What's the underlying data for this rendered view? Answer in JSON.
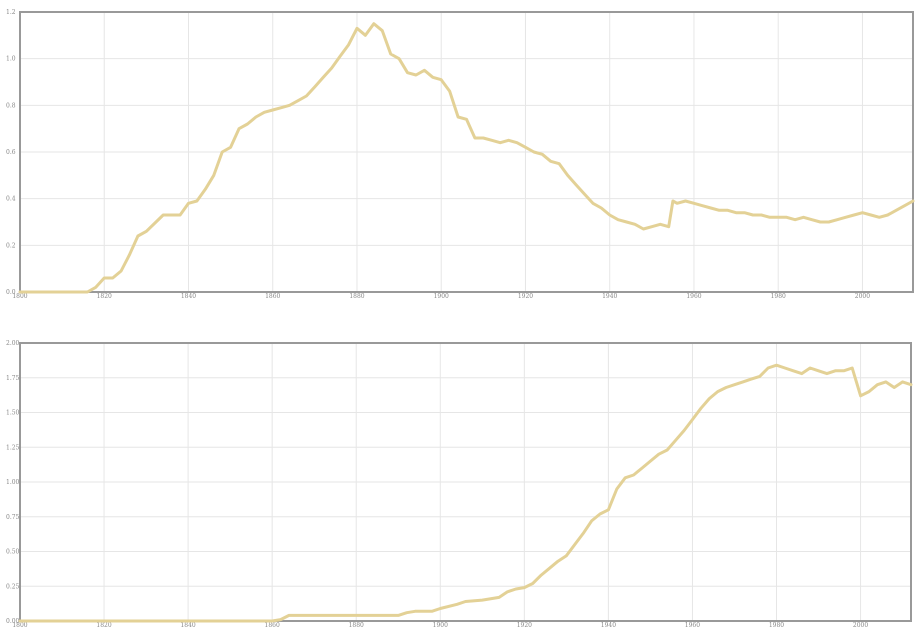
{
  "colors": {
    "line": "#e3d196",
    "grid": "#e6e6e6",
    "frame": "#999999"
  },
  "chart_data": [
    {
      "type": "line",
      "title": "",
      "xlabel": "",
      "ylabel": "",
      "xlim": [
        1800,
        2012
      ],
      "ylim": [
        0,
        1.2
      ],
      "grid": true,
      "xticks": [
        1800,
        1820,
        1840,
        1860,
        1880,
        1900,
        1920,
        1940,
        1960,
        1980,
        2000
      ],
      "xtick_labels": [
        "1800",
        "1820",
        "1840",
        "1860",
        "1880",
        "1900",
        "1920",
        "1940",
        "1960",
        "1980",
        "2000"
      ],
      "yticks": [
        0,
        0.2,
        0.4,
        0.6,
        0.8,
        1.0,
        1.2
      ],
      "ytick_labels": [
        "0.0",
        "0.2",
        "0.4",
        "0.6",
        "0.8",
        "1.0",
        "1.2"
      ],
      "series": [
        {
          "x": [
            1800,
            1816,
            1818,
            1820,
            1822,
            1824,
            1826,
            1828,
            1830,
            1834,
            1836,
            1838,
            1840,
            1842,
            1844,
            1846,
            1848,
            1850,
            1852,
            1854,
            1856,
            1858,
            1860,
            1862,
            1864,
            1866,
            1868,
            1870,
            1872,
            1874,
            1876,
            1878,
            1880,
            1882,
            1884,
            1886,
            1888,
            1890,
            1892,
            1894,
            1896,
            1898,
            1900,
            1902,
            1904,
            1906,
            1908,
            1910,
            1912,
            1914,
            1916,
            1918,
            1920,
            1922,
            1924,
            1926,
            1928,
            1930,
            1932,
            1934,
            1936,
            1938,
            1940,
            1942,
            1944,
            1946,
            1948,
            1950,
            1952,
            1954,
            1955,
            1956,
            1958,
            1960,
            1962,
            1964,
            1966,
            1968,
            1970,
            1972,
            1974,
            1976,
            1978,
            1980,
            1982,
            1984,
            1986,
            1988,
            1990,
            1992,
            1994,
            1996,
            1998,
            2000,
            2002,
            2004,
            2006,
            2008,
            2010,
            2012
          ],
          "y": [
            0,
            0,
            0.02,
            0.06,
            0.06,
            0.09,
            0.16,
            0.24,
            0.26,
            0.33,
            0.33,
            0.33,
            0.38,
            0.39,
            0.44,
            0.5,
            0.6,
            0.62,
            0.7,
            0.72,
            0.75,
            0.77,
            0.78,
            0.79,
            0.8,
            0.82,
            0.84,
            0.88,
            0.92,
            0.96,
            1.01,
            1.06,
            1.13,
            1.1,
            1.15,
            1.12,
            1.02,
            1.0,
            0.94,
            0.93,
            0.95,
            0.92,
            0.91,
            0.86,
            0.75,
            0.74,
            0.66,
            0.66,
            0.65,
            0.64,
            0.65,
            0.64,
            0.62,
            0.6,
            0.59,
            0.56,
            0.55,
            0.5,
            0.46,
            0.42,
            0.38,
            0.36,
            0.33,
            0.31,
            0.3,
            0.29,
            0.27,
            0.28,
            0.29,
            0.28,
            0.39,
            0.38,
            0.39,
            0.38,
            0.37,
            0.36,
            0.35,
            0.35,
            0.34,
            0.34,
            0.33,
            0.33,
            0.32,
            0.32,
            0.32,
            0.31,
            0.32,
            0.31,
            0.3,
            0.3,
            0.31,
            0.32,
            0.33,
            0.34,
            0.33,
            0.32,
            0.33,
            0.35,
            0.37,
            0.39
          ]
        }
      ]
    },
    {
      "type": "line",
      "title": "",
      "xlabel": "",
      "ylabel": "",
      "xlim": [
        1800,
        2012
      ],
      "ylim": [
        0,
        2.0
      ],
      "grid": true,
      "xticks": [
        1800,
        1820,
        1840,
        1860,
        1880,
        1900,
        1920,
        1940,
        1960,
        1980,
        2000
      ],
      "xtick_labels": [
        "1800",
        "1820",
        "1840",
        "1860",
        "1880",
        "1900",
        "1920",
        "1940",
        "1960",
        "1980",
        "2000"
      ],
      "yticks": [
        0,
        0.25,
        0.5,
        0.75,
        1.0,
        1.25,
        1.5,
        1.75,
        2.0
      ],
      "ytick_labels": [
        "0.00",
        "0.25",
        "0.50",
        "0.75",
        "1.00",
        "1.25",
        "1.50",
        "1.75",
        "2.00"
      ],
      "series": [
        {
          "x": [
            1800,
            1860,
            1862,
            1864,
            1866,
            1870,
            1880,
            1890,
            1892,
            1894,
            1898,
            1900,
            1904,
            1906,
            1910,
            1914,
            1916,
            1918,
            1920,
            1922,
            1924,
            1926,
            1928,
            1930,
            1932,
            1934,
            1936,
            1938,
            1940,
            1942,
            1944,
            1946,
            1948,
            1950,
            1952,
            1954,
            1956,
            1958,
            1960,
            1962,
            1964,
            1966,
            1968,
            1970,
            1972,
            1974,
            1976,
            1978,
            1980,
            1982,
            1984,
            1986,
            1988,
            1990,
            1992,
            1994,
            1996,
            1998,
            2000,
            2002,
            2004,
            2006,
            2008,
            2010,
            2012
          ],
          "y": [
            0,
            0,
            0.01,
            0.04,
            0.04,
            0.04,
            0.04,
            0.04,
            0.06,
            0.07,
            0.07,
            0.09,
            0.12,
            0.14,
            0.15,
            0.17,
            0.21,
            0.23,
            0.24,
            0.27,
            0.33,
            0.38,
            0.43,
            0.47,
            0.55,
            0.63,
            0.72,
            0.77,
            0.8,
            0.95,
            1.03,
            1.05,
            1.1,
            1.15,
            1.2,
            1.23,
            1.3,
            1.37,
            1.45,
            1.53,
            1.6,
            1.65,
            1.68,
            1.7,
            1.72,
            1.74,
            1.76,
            1.82,
            1.84,
            1.82,
            1.8,
            1.78,
            1.82,
            1.8,
            1.78,
            1.8,
            1.8,
            1.82,
            1.62,
            1.65,
            1.7,
            1.72,
            1.68,
            1.72,
            1.7
          ]
        }
      ]
    }
  ]
}
